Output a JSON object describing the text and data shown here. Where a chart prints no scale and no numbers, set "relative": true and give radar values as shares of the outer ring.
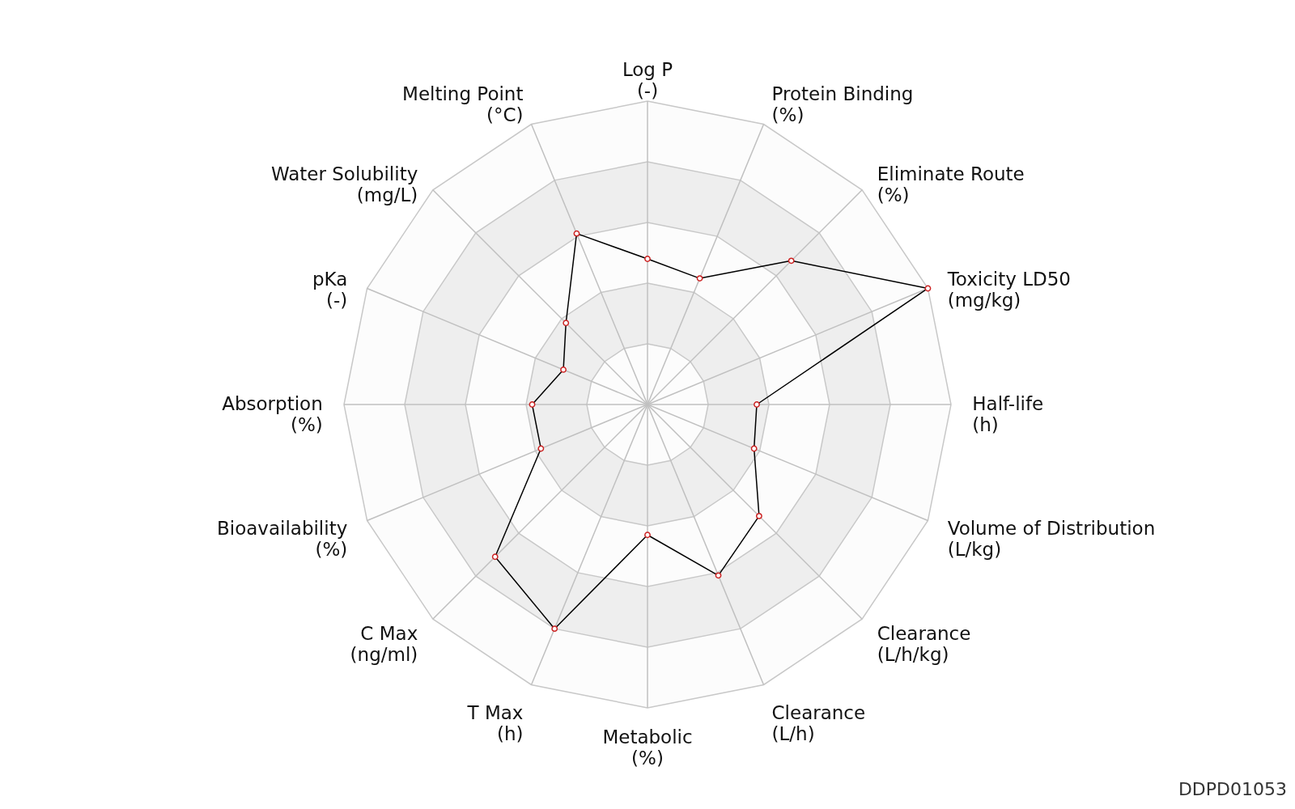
{
  "chart_data": {
    "type": "radar",
    "relative": true,
    "grid": true,
    "marker": "circle",
    "line_style": "solid",
    "categories": [
      "Log P (-)",
      "Protein Binding (%)",
      "Eliminate Route (%)",
      "Toxicity LD50 (mg/kg)",
      "Half-life (h)",
      "Volume of Distribution (L/kg)",
      "Clearance (L/h/kg)",
      "Clearance (L/h)",
      "Metabolic (%)",
      "T Max (h)",
      "C Max (ng/ml)",
      "Bioavailability (%)",
      "Absorption (%)",
      "pKa (-)",
      "Water Solubility (mg/L)",
      "Melting Point (°C)"
    ],
    "series": [
      {
        "color": "#000000",
        "values": [
          0.48,
          0.45,
          0.67,
          1.0,
          0.36,
          0.38,
          0.52,
          0.61,
          0.43,
          0.8,
          0.71,
          0.38,
          0.38,
          0.3,
          0.38,
          0.61
        ]
      }
    ],
    "annotations": [
      "DDPD01053"
    ]
  }
}
